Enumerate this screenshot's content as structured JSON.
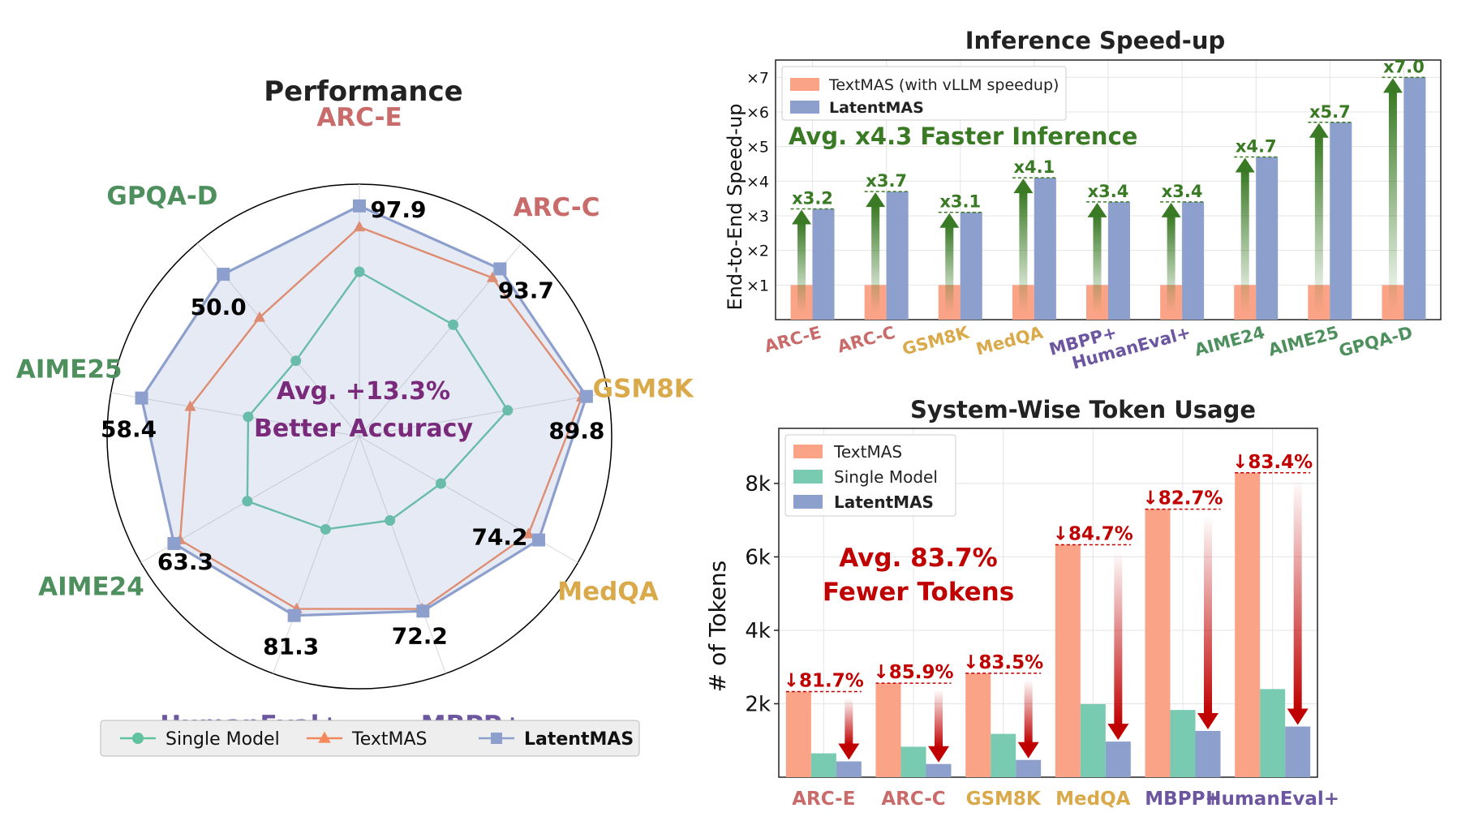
{
  "chart_data": [
    {
      "type": "radar",
      "title": "Performance",
      "categories": [
        "ARC-E",
        "ARC-C",
        "GSM8K",
        "MedQA",
        "MBPP+",
        "HumanEval+",
        "AIME24",
        "AIME25",
        "GPQA-D"
      ],
      "category_colors": [
        "#c96b6b",
        "#c96b6b",
        "#d9a94a",
        "#d9a94a",
        "#6d56a0",
        "#6d56a0",
        "#4e8f5e",
        "#4e8f5e",
        "#4e8f5e"
      ],
      "series": [
        {
          "name": "Single Model",
          "color": "#5fc3a0",
          "marker": "circle",
          "values": [
            0.7,
            0.62,
            0.64,
            0.4,
            0.38,
            0.42,
            0.55,
            0.48,
            0.42
          ]
        },
        {
          "name": "TextMAS",
          "color": "#f5885a",
          "marker": "triangle",
          "values": [
            0.89,
            0.88,
            0.96,
            0.83,
            0.78,
            0.78,
            0.88,
            0.73,
            0.66
          ]
        },
        {
          "name": "LatentMAS",
          "color": "#8d9fcc",
          "marker": "square",
          "values": [
            0.98,
            0.93,
            0.98,
            0.88,
            0.79,
            0.81,
            0.91,
            0.94,
            0.9
          ]
        }
      ],
      "value_labels": [
        "97.9",
        "93.7",
        "89.8",
        "74.2",
        "72.2",
        "81.3",
        "63.3",
        "58.4",
        "50.0"
      ],
      "center_text": [
        "Avg. +13.3%",
        "Better Accuracy"
      ],
      "center_text_color": "#7a2a7a",
      "legend_position": "bottom"
    },
    {
      "type": "bar",
      "title": "Inference Speed-up",
      "ylabel": "End-to-End Speed-up",
      "categories": [
        "ARC-E",
        "ARC-C",
        "GSM8K",
        "MedQA",
        "MBPP+",
        "HumanEval+",
        "AIME24",
        "AIME25",
        "GPQA-D"
      ],
      "category_colors": [
        "#c96b6b",
        "#c96b6b",
        "#d9a94a",
        "#d9a94a",
        "#6d56a0",
        "#6d56a0",
        "#4e8f5e",
        "#4e8f5e",
        "#4e8f5e"
      ],
      "ylim": [
        0,
        7.5
      ],
      "yticks": [
        1,
        2,
        3,
        4,
        5,
        6,
        7
      ],
      "ytick_labels": [
        "×1",
        "×2",
        "×3",
        "×4",
        "×5",
        "×6",
        "×7"
      ],
      "series": [
        {
          "name": "TextMAS (with vLLM speedup)",
          "color": "#fba386",
          "values": [
            1,
            1,
            1,
            1,
            1,
            1,
            1,
            1,
            1
          ]
        },
        {
          "name": "LatentMAS",
          "color": "#8d9fcc",
          "values": [
            3.2,
            3.7,
            3.1,
            4.1,
            3.4,
            3.4,
            4.7,
            5.7,
            7.0
          ]
        }
      ],
      "annotations": [
        "x3.2",
        "x3.7",
        "x3.1",
        "x4.1",
        "x3.4",
        "x3.4",
        "x4.7",
        "x5.7",
        "x7.0"
      ],
      "annotation_color": "#3a7a25",
      "callout": "Avg. x4.3 Faster Inference",
      "legend_position": "top-left",
      "grid": true
    },
    {
      "type": "bar",
      "title": "System-Wise Token Usage",
      "ylabel": "# of Tokens",
      "categories": [
        "ARC-E",
        "ARC-C",
        "GSM8K",
        "MedQA",
        "MBPP+",
        "HumanEval+"
      ],
      "category_colors": [
        "#c96b6b",
        "#c96b6b",
        "#d9a94a",
        "#d9a94a",
        "#6d56a0",
        "#6d56a0"
      ],
      "ylim": [
        0,
        9500
      ],
      "yticks": [
        2000,
        4000,
        6000,
        8000
      ],
      "ytick_labels": [
        "2k",
        "4k",
        "6k",
        "8k"
      ],
      "series": [
        {
          "name": "TextMAS",
          "color": "#fba386",
          "values": [
            2330,
            2560,
            2830,
            6330,
            7300,
            8290
          ]
        },
        {
          "name": "Single Model",
          "color": "#78cbb0",
          "values": [
            650,
            830,
            1180,
            1990,
            1830,
            2400
          ]
        },
        {
          "name": "LatentMAS",
          "color": "#8d9fcc",
          "values": [
            430,
            360,
            470,
            970,
            1260,
            1380
          ]
        }
      ],
      "annotations": [
        "↓81.7%",
        "↓85.9%",
        "↓83.5%",
        "↓84.7%",
        "↓82.7%",
        "↓83.4%"
      ],
      "annotation_color": "#c00000",
      "callout": [
        "Avg. 83.7%",
        "Fewer Tokens"
      ],
      "legend_position": "top-left",
      "grid": true
    }
  ]
}
